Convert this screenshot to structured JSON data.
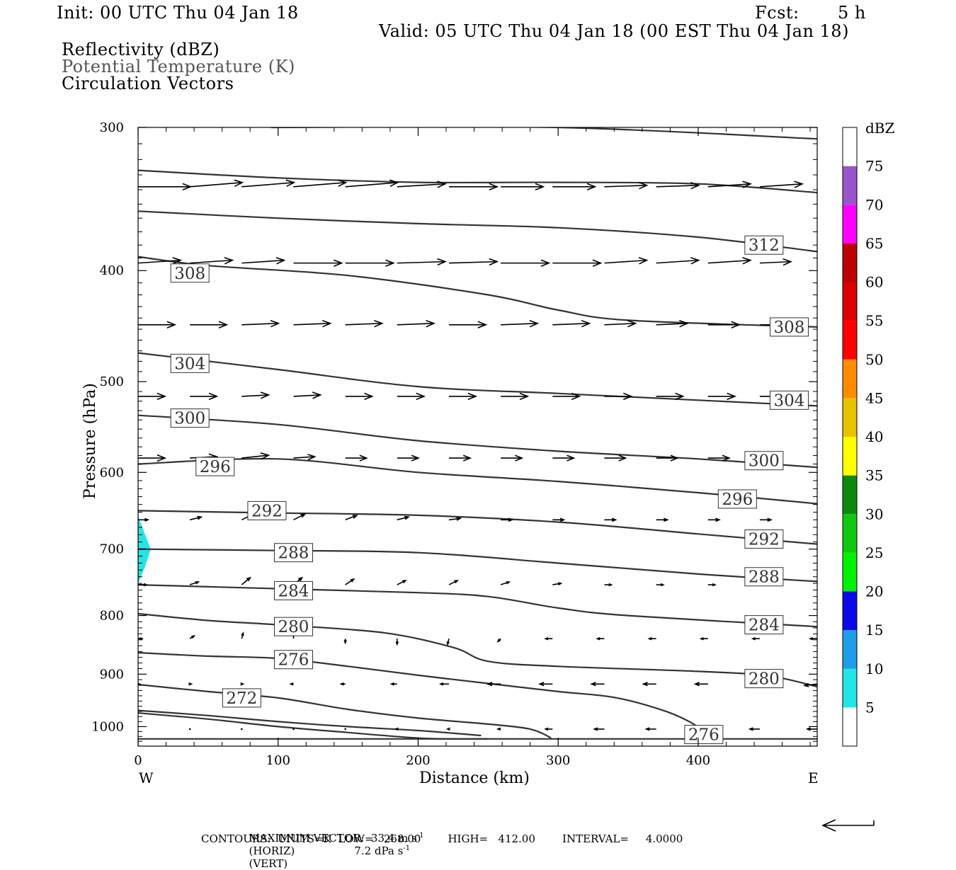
{
  "header": {
    "init": "Init: 00 UTC Thu 04 Jan 18",
    "fcst_label": "Fcst:",
    "fcst_value": "5 h",
    "valid": "Valid: 05 UTC Thu 04 Jan 18 (00 EST Thu 04 Jan 18)",
    "field1": "Reflectivity (dBZ)",
    "field2": "Potential Temperature (K)",
    "field3": "Circulation Vectors"
  },
  "footer": {
    "line1_a": "MAXIMUM VECTOR:  33.4 m s",
    "line1_b": "(HORIZ)",
    "line1_c": "7.2 dPa s",
    "line1_d": "(VERT)",
    "sup": "-1",
    "line2": "CONTOURS:  UNITS=K  LOW=   268.00        HIGH=   412.00        INTERVAL=     4.0000"
  },
  "colors": {
    "contour": "#333333",
    "vector": "#000000",
    "refl_5": "#22e5e5"
  },
  "chart_data": {
    "type": "line",
    "xlabel": "Distance (km)",
    "ylabel": "Pressure (hPa)",
    "xlim": [
      0,
      485
    ],
    "ylim": [
      1040,
      300
    ],
    "yscale": "log",
    "x_ticks": [
      0,
      100,
      200,
      300,
      400
    ],
    "y_ticks": [
      300,
      400,
      500,
      600,
      700,
      800,
      900,
      1000
    ],
    "x_end_labels": {
      "left": "W",
      "right": "E"
    },
    "colorbar": {
      "unit": "dBZ",
      "levels": [
        5,
        10,
        15,
        20,
        25,
        30,
        35,
        40,
        45,
        50,
        55,
        60,
        65,
        70,
        75
      ],
      "colors": [
        "#ffffff",
        "#22e5e5",
        "#1f9de8",
        "#0a0ae6",
        "#00f200",
        "#10c810",
        "#0d8a0d",
        "#ffff00",
        "#e6c200",
        "#ff8c00",
        "#ff0000",
        "#dd0000",
        "#bb0000",
        "#ff00ff",
        "#9955cc",
        "#ffffff"
      ]
    },
    "reflectivity_polygon": {
      "value": 5,
      "points": [
        [
          0,
          655
        ],
        [
          5,
          680
        ],
        [
          9,
          700
        ],
        [
          5,
          725
        ],
        [
          0,
          750
        ]
      ]
    },
    "series": [
      {
        "label": "312",
        "points": [
          [
            0,
            355
          ],
          [
            100,
            360
          ],
          [
            200,
            364
          ],
          [
            300,
            367
          ],
          [
            400,
            374
          ],
          [
            485,
            385
          ]
        ],
        "labels_at": [
          [
            447,
            380
          ]
        ]
      },
      {
        "label": "308",
        "points": [
          [
            0,
            389
          ],
          [
            50,
            396
          ],
          [
            150,
            404
          ],
          [
            250,
            420
          ],
          [
            300,
            433
          ],
          [
            350,
            442
          ],
          [
            485,
            448
          ]
        ],
        "labels_at": [
          [
            37,
            402
          ],
          [
            465,
            448
          ]
        ]
      },
      {
        "label": "304",
        "points": [
          [
            0,
            472
          ],
          [
            100,
            488
          ],
          [
            200,
            505
          ],
          [
            300,
            512
          ],
          [
            400,
            519
          ],
          [
            485,
            525
          ]
        ],
        "labels_at": [
          [
            37,
            482
          ],
          [
            465,
            519
          ]
        ]
      },
      {
        "label": "300",
        "points": [
          [
            0,
            535
          ],
          [
            100,
            545
          ],
          [
            200,
            563
          ],
          [
            300,
            575
          ],
          [
            400,
            584
          ],
          [
            485,
            594
          ]
        ],
        "labels_at": [
          [
            37,
            538
          ],
          [
            447,
            586
          ]
        ]
      },
      {
        "label": "296",
        "points": [
          [
            0,
            590
          ],
          [
            100,
            584
          ],
          [
            200,
            600
          ],
          [
            300,
            611
          ],
          [
            400,
            625
          ],
          [
            485,
            639
          ]
        ],
        "labels_at": [
          [
            55,
            593
          ],
          [
            428,
            633
          ]
        ]
      },
      {
        "label": "292",
        "points": [
          [
            0,
            648
          ],
          [
            100,
            651
          ],
          [
            200,
            654
          ],
          [
            300,
            663
          ],
          [
            400,
            679
          ],
          [
            485,
            693
          ]
        ],
        "labels_at": [
          [
            92,
            648
          ],
          [
            447,
            686
          ]
        ]
      },
      {
        "label": "288",
        "points": [
          [
            0,
            700
          ],
          [
            100,
            702
          ],
          [
            200,
            705
          ],
          [
            300,
            720
          ],
          [
            400,
            736
          ],
          [
            485,
            747
          ]
        ],
        "labels_at": [
          [
            111,
            705
          ],
          [
            447,
            740
          ]
        ]
      },
      {
        "label": "284",
        "points": [
          [
            0,
            752
          ],
          [
            100,
            758
          ],
          [
            200,
            764
          ],
          [
            250,
            770
          ],
          [
            300,
            788
          ],
          [
            350,
            800
          ],
          [
            485,
            818
          ]
        ],
        "labels_at": [
          [
            111,
            761
          ],
          [
            447,
            815
          ]
        ]
      },
      {
        "label": "280",
        "points": [
          [
            0,
            797
          ],
          [
            50,
            808
          ],
          [
            100,
            815
          ],
          [
            175,
            828
          ],
          [
            225,
            853
          ],
          [
            250,
            877
          ],
          [
            300,
            886
          ],
          [
            400,
            895
          ],
          [
            450,
            903
          ],
          [
            485,
            923
          ]
        ],
        "labels_at": [
          [
            111,
            818
          ],
          [
            447,
            908
          ]
        ]
      },
      {
        "label": "276",
        "points": [
          [
            0,
            862
          ],
          [
            50,
            868
          ],
          [
            100,
            872
          ],
          [
            150,
            886
          ],
          [
            200,
            902
          ],
          [
            250,
            917
          ],
          [
            300,
            932
          ],
          [
            340,
            943
          ],
          [
            375,
            968
          ],
          [
            395,
            992
          ],
          [
            405,
            1013
          ]
        ],
        "labels_at": [
          [
            111,
            874
          ]
        ]
      },
      {
        "label": "272",
        "points": [
          [
            0,
            919
          ],
          [
            50,
            932
          ],
          [
            100,
            944
          ],
          [
            150,
            966
          ],
          [
            200,
            983
          ],
          [
            250,
            995
          ],
          [
            280,
            1005
          ],
          [
            295,
            1023
          ]
        ],
        "labels_at": [
          [
            74,
            944
          ]
        ]
      },
      {
        "label": "276",
        "points": [
          [
            0,
            1025
          ],
          [
            485,
            1025
          ]
        ],
        "labels_at": [
          [
            404,
            1016
          ]
        ]
      },
      {
        "label": "",
        "points": [
          [
            0,
            968
          ],
          [
            50,
            978
          ],
          [
            100,
            990
          ],
          [
            150,
            1000
          ],
          [
            200,
            1008
          ],
          [
            245,
            1018
          ]
        ],
        "labels_at": []
      },
      {
        "label": "",
        "points": [
          [
            0,
            973
          ],
          [
            50,
            985
          ],
          [
            100,
            1000
          ],
          [
            150,
            1012
          ],
          [
            205,
            1024
          ],
          [
            250,
            1025
          ]
        ],
        "labels_at": []
      },
      {
        "label": "",
        "points": [
          [
            95,
            300
          ],
          [
            300,
            300
          ],
          [
            485,
            307
          ]
        ],
        "labels_at": []
      },
      {
        "label": "",
        "points": [
          [
            0,
            327
          ],
          [
            100,
            332
          ],
          [
            200,
            335
          ],
          [
            300,
            335
          ],
          [
            400,
            336
          ],
          [
            485,
            342
          ]
        ],
        "labels_at": []
      }
    ],
    "vector_rows": [
      {
        "p": 338,
        "x": [
          0,
          37,
          74,
          111,
          148,
          185,
          222,
          259,
          296,
          333,
          370,
          407,
          444
        ],
        "u": [
          37,
          37,
          37,
          37,
          37,
          34,
          34,
          30,
          30,
          30,
          30,
          30,
          30
        ],
        "w": [
          0,
          -3,
          -3,
          -3,
          -3,
          -2,
          0,
          0,
          0,
          -1,
          -1,
          -2,
          -2
        ]
      },
      {
        "p": 394,
        "x": [
          0,
          37,
          74,
          111,
          148,
          185,
          222,
          259,
          296,
          333,
          370,
          407,
          444
        ],
        "u": [
          30,
          30,
          30,
          34,
          34,
          34,
          34,
          34,
          34,
          30,
          30,
          30,
          22
        ],
        "w": [
          -2,
          -2,
          -2,
          0,
          0,
          -1,
          -1,
          0,
          0,
          -2,
          -2,
          -2,
          -1
        ]
      },
      {
        "p": 446,
        "x": [
          0,
          37,
          74,
          111,
          148,
          185,
          222,
          259,
          296,
          333,
          370,
          407,
          444
        ],
        "u": [
          26,
          26,
          26,
          26,
          26,
          26,
          26,
          26,
          26,
          22,
          22,
          22,
          18
        ],
        "w": [
          0,
          0,
          -1,
          -1,
          -1,
          -1,
          0,
          -1,
          -1,
          -1,
          -1,
          0,
          0
        ]
      },
      {
        "p": 515,
        "x": [
          0,
          37,
          74,
          111,
          148,
          185,
          222,
          259,
          296,
          333,
          370,
          407,
          444
        ],
        "u": [
          19,
          19,
          19,
          19,
          19,
          19,
          19,
          19,
          19,
          19,
          19,
          19,
          15
        ],
        "w": [
          0,
          0,
          -1,
          -1,
          0,
          0,
          0,
          0,
          0,
          0,
          0,
          0,
          0
        ]
      },
      {
        "p": 583,
        "x": [
          0,
          37,
          74,
          111,
          148,
          185,
          222,
          259,
          296,
          333,
          370,
          407,
          444
        ],
        "u": [
          19,
          19,
          19,
          15,
          15,
          15,
          15,
          15,
          15,
          15,
          15,
          15,
          11
        ],
        "w": [
          0,
          -1,
          -2,
          -1,
          0,
          0,
          0,
          0,
          0,
          0,
          0,
          0,
          0
        ]
      },
      {
        "p": 660,
        "x": [
          0,
          37,
          74,
          111,
          148,
          185,
          222,
          259,
          296,
          333,
          370,
          407,
          444
        ],
        "u": [
          7,
          8,
          8,
          8,
          8,
          8,
          8,
          8,
          8,
          8,
          8,
          8,
          8
        ],
        "w": [
          0,
          -2,
          -4,
          -4,
          -3,
          -2,
          -1,
          0,
          0,
          0,
          0,
          0,
          0
        ]
      },
      {
        "p": 752,
        "x": [
          0,
          37,
          74,
          111,
          148,
          185,
          222,
          259,
          296,
          333,
          370,
          407,
          444
        ],
        "u": [
          6,
          6,
          6,
          6,
          6,
          6,
          6,
          6,
          6,
          5,
          5,
          5,
          4
        ],
        "w": [
          0,
          -2,
          -5,
          -5,
          -4,
          -3,
          -3,
          -2,
          -1,
          0,
          0,
          0,
          -1
        ]
      },
      {
        "p": 838,
        "x": [
          0,
          37,
          74,
          111,
          148,
          185,
          222,
          259,
          296,
          333,
          370,
          407,
          444,
          485
        ],
        "u": [
          3,
          3,
          1,
          0,
          0,
          0,
          -1,
          -2,
          -5,
          -5,
          -5,
          -5,
          -5,
          -5
        ],
        "w": [
          0,
          -2,
          -4,
          -4,
          3,
          4,
          4,
          2,
          0,
          0,
          0,
          0,
          0,
          0
        ]
      },
      {
        "p": 918,
        "x": [
          0,
          37,
          74,
          111,
          148,
          185,
          222,
          259,
          296,
          333,
          370,
          407,
          444,
          485
        ],
        "u": [
          1,
          1,
          1,
          -2,
          -3,
          -4,
          -6,
          -9,
          -9,
          -9,
          -9,
          -9,
          -9,
          -9
        ],
        "w": [
          0,
          0,
          0,
          0,
          0,
          0,
          0,
          0,
          0,
          0,
          0,
          0,
          1,
          1
        ]
      },
      {
        "p": 1005,
        "x": [
          37,
          74,
          111,
          148,
          185,
          222,
          259,
          296,
          333,
          370,
          407,
          444,
          485
        ],
        "u": [
          0,
          0,
          0,
          0,
          -1,
          -1,
          -2,
          -5,
          -7,
          -7,
          -7,
          -7,
          -7
        ],
        "w": [
          0,
          0,
          0,
          0,
          0,
          0,
          0,
          0,
          0,
          0,
          0,
          0,
          0
        ]
      }
    ]
  }
}
